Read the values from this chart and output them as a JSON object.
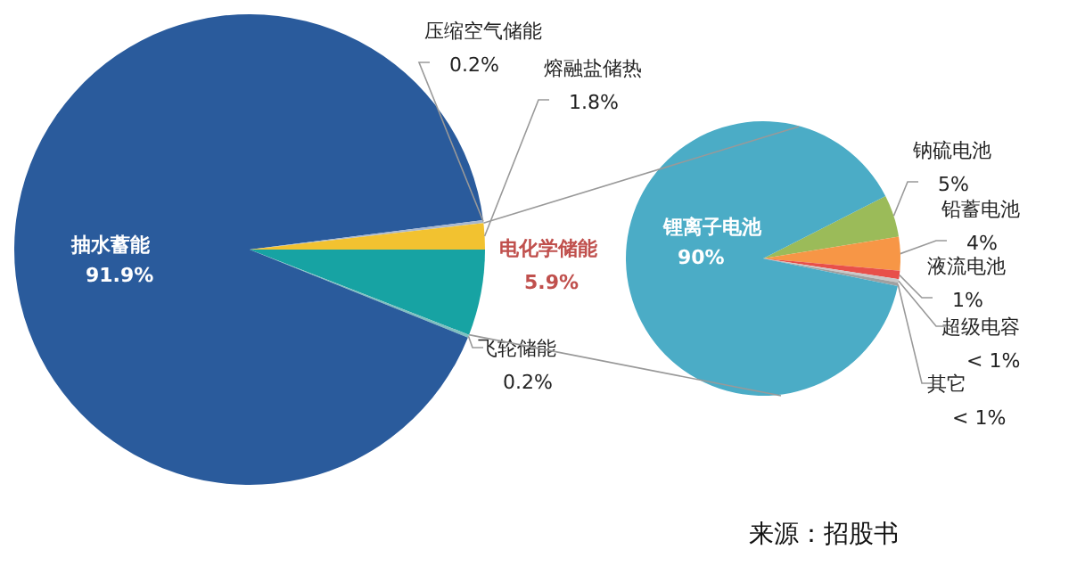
{
  "chart_data": [
    {
      "type": "pie",
      "categories": [
        "电化学储能",
        "飞轮储能",
        "抽水蓄能",
        "压缩空气储能",
        "熔融盐储热"
      ],
      "values": [
        5.9,
        0.2,
        91.9,
        0.2,
        1.8
      ],
      "colors": [
        "#17a3a3",
        "#7fc0c0",
        "#2a5b9c",
        "#a8b8d0",
        "#f2c230"
      ],
      "value_labels": [
        "5.9%",
        "0.2%",
        "91.9%",
        "0.2%",
        "1.8%"
      ],
      "annotations": [
        "来源：招股书"
      ]
    },
    {
      "type": "pie",
      "categories": [
        "钠硫电池",
        "铅蓄电池",
        "液流电池",
        "超级电容",
        "其它",
        "锂离子电池"
      ],
      "values": [
        5,
        4,
        1,
        0.4,
        0.4,
        90
      ],
      "colors": [
        "#9bbb59",
        "#f79646",
        "#e8504a",
        "#c8c8c8",
        "#a0a0a0",
        "#4bacc6"
      ],
      "value_labels": [
        "5%",
        "4%",
        "1%",
        "< 1%",
        "< 1%",
        "90%"
      ]
    }
  ]
}
